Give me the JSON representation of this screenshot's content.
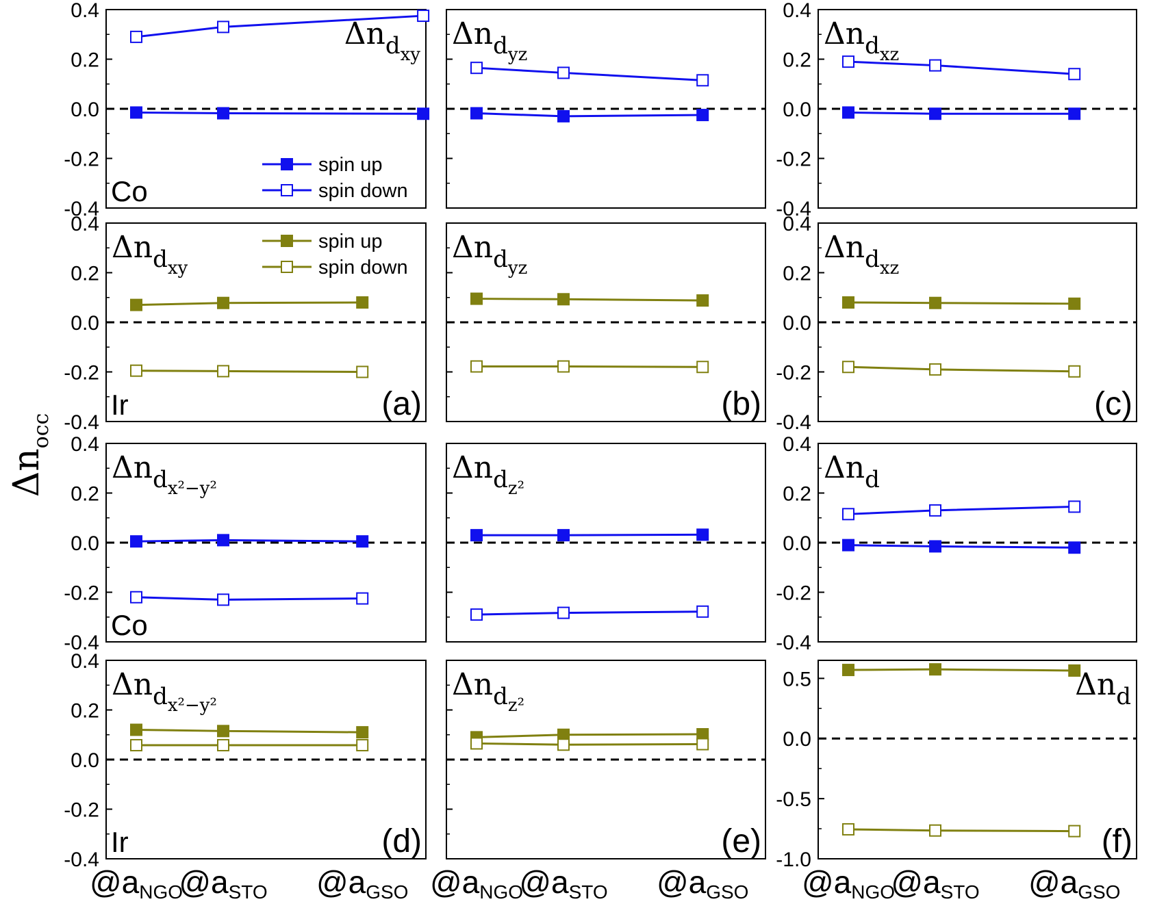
{
  "figure": {
    "ylabel_main": "Δn",
    "ylabel_sub": "occ",
    "x_categories": [
      {
        "at": "@a",
        "sub": "NGO"
      },
      {
        "at": "@a",
        "sub": "STO"
      },
      {
        "at": "@a",
        "sub": "GSO"
      }
    ],
    "colors": {
      "co": "#1010ee",
      "ir": "#808010",
      "zero_line": "#000000"
    },
    "legend": {
      "up": "spin up",
      "down": "spin down"
    }
  },
  "chart_data": [
    {
      "id": "co-dxy",
      "type": "line",
      "element": "Co",
      "panel_letter": "",
      "orbital_main": "Δn",
      "orbital_sub": "d",
      "orbital_subsub": "xy",
      "label_pos": "top-right",
      "x": [
        0,
        1,
        3.3
      ],
      "ylim": [
        -0.4,
        0.4
      ],
      "yticks": [
        "0.4",
        "0.2",
        "0.0",
        "-0.2",
        "-0.4"
      ],
      "series": [
        {
          "name": "spin up",
          "color": "#1010ee",
          "filled": true,
          "values": [
            -0.015,
            -0.018,
            -0.02
          ]
        },
        {
          "name": "spin down",
          "color": "#1010ee",
          "filled": false,
          "values": [
            0.29,
            0.33,
            0.375
          ]
        }
      ],
      "legend": true
    },
    {
      "id": "co-dyz",
      "type": "line",
      "element": "",
      "panel_letter": "",
      "orbital_main": "Δn",
      "orbital_sub": "d",
      "orbital_subsub": "yz",
      "label_pos": "top-left",
      "x": [
        0,
        1,
        2.6
      ],
      "ylim": [
        -0.4,
        0.4
      ],
      "yticks": [],
      "series": [
        {
          "name": "spin up",
          "color": "#1010ee",
          "filled": true,
          "values": [
            -0.018,
            -0.03,
            -0.025
          ]
        },
        {
          "name": "spin down",
          "color": "#1010ee",
          "filled": false,
          "values": [
            0.165,
            0.145,
            0.115
          ]
        }
      ]
    },
    {
      "id": "co-dxz",
      "type": "line",
      "element": "",
      "panel_letter": "",
      "orbital_main": "Δn",
      "orbital_sub": "d",
      "orbital_subsub": "xz",
      "label_pos": "top-left",
      "x": [
        0,
        1,
        2.6
      ],
      "ylim": [
        -0.4,
        0.4
      ],
      "yticks": [
        "0.4",
        "0.2",
        "0.0",
        "-0.2",
        "-0.4"
      ],
      "series": [
        {
          "name": "spin up",
          "color": "#1010ee",
          "filled": true,
          "values": [
            -0.015,
            -0.02,
            -0.02
          ]
        },
        {
          "name": "spin down",
          "color": "#1010ee",
          "filled": false,
          "values": [
            0.19,
            0.175,
            0.14
          ]
        }
      ]
    },
    {
      "id": "ir-dxy",
      "type": "line",
      "element": "Ir",
      "panel_letter": "(a)",
      "orbital_main": "Δn",
      "orbital_sub": "d",
      "orbital_subsub": "xy",
      "label_pos": "top-left",
      "x": [
        0,
        1,
        2.6
      ],
      "ylim": [
        -0.4,
        0.4
      ],
      "yticks": [
        "0.4",
        "0.2",
        "0.0",
        "-0.2",
        "-0.4"
      ],
      "series": [
        {
          "name": "spin up",
          "color": "#808010",
          "filled": true,
          "values": [
            0.07,
            0.078,
            0.08
          ]
        },
        {
          "name": "spin down",
          "color": "#808010",
          "filled": false,
          "values": [
            -0.195,
            -0.197,
            -0.2
          ]
        }
      ],
      "legend": true
    },
    {
      "id": "ir-dyz",
      "type": "line",
      "element": "",
      "panel_letter": "(b)",
      "orbital_main": "Δn",
      "orbital_sub": "d",
      "orbital_subsub": "yz",
      "label_pos": "top-left",
      "x": [
        0,
        1,
        2.6
      ],
      "ylim": [
        -0.4,
        0.4
      ],
      "yticks": [],
      "series": [
        {
          "name": "spin up",
          "color": "#808010",
          "filled": true,
          "values": [
            0.095,
            0.093,
            0.088
          ]
        },
        {
          "name": "spin down",
          "color": "#808010",
          "filled": false,
          "values": [
            -0.178,
            -0.178,
            -0.18
          ]
        }
      ]
    },
    {
      "id": "ir-dxz",
      "type": "line",
      "element": "",
      "panel_letter": "(c)",
      "orbital_main": "Δn",
      "orbital_sub": "d",
      "orbital_subsub": "xz",
      "label_pos": "top-left",
      "x": [
        0,
        1,
        2.6
      ],
      "ylim": [
        -0.4,
        0.4
      ],
      "yticks": [
        "0.4",
        "0.2",
        "0.0",
        "-0.2",
        "-0.4"
      ],
      "series": [
        {
          "name": "spin up",
          "color": "#808010",
          "filled": true,
          "values": [
            0.08,
            0.078,
            0.075
          ]
        },
        {
          "name": "spin down",
          "color": "#808010",
          "filled": false,
          "values": [
            -0.18,
            -0.19,
            -0.198
          ]
        }
      ]
    },
    {
      "id": "co-dx2y2",
      "type": "line",
      "element": "Co",
      "panel_letter": "",
      "orbital_main": "Δn",
      "orbital_sub": "d",
      "orbital_subsub": "x²−y²",
      "label_pos": "top-left",
      "x": [
        0,
        1,
        2.6
      ],
      "ylim": [
        -0.4,
        0.4
      ],
      "yticks": [
        "0.4",
        "0.2",
        "0.0",
        "-0.2",
        "-0.4"
      ],
      "series": [
        {
          "name": "spin up",
          "color": "#1010ee",
          "filled": true,
          "values": [
            0.005,
            0.01,
            0.005
          ]
        },
        {
          "name": "spin down",
          "color": "#1010ee",
          "filled": false,
          "values": [
            -0.22,
            -0.23,
            -0.225
          ]
        }
      ]
    },
    {
      "id": "co-dz2",
      "type": "line",
      "element": "",
      "panel_letter": "",
      "orbital_main": "Δn",
      "orbital_sub": "d",
      "orbital_subsub": "z²",
      "label_pos": "top-left",
      "x": [
        0,
        1,
        2.6
      ],
      "ylim": [
        -0.4,
        0.4
      ],
      "yticks": [],
      "series": [
        {
          "name": "spin up",
          "color": "#1010ee",
          "filled": true,
          "values": [
            0.03,
            0.03,
            0.032
          ]
        },
        {
          "name": "spin down",
          "color": "#1010ee",
          "filled": false,
          "values": [
            -0.29,
            -0.283,
            -0.278
          ]
        }
      ]
    },
    {
      "id": "co-d",
      "type": "line",
      "element": "",
      "panel_letter": "",
      "orbital_main": "Δn",
      "orbital_sub": "d",
      "orbital_subsub": "",
      "label_pos": "top-left",
      "x": [
        0,
        1,
        2.6
      ],
      "ylim": [
        -0.4,
        0.4
      ],
      "yticks": [
        "0.4",
        "0.2",
        "0.0",
        "-0.2",
        "-0.4"
      ],
      "series": [
        {
          "name": "spin up",
          "color": "#1010ee",
          "filled": true,
          "values": [
            -0.01,
            -0.015,
            -0.02
          ]
        },
        {
          "name": "spin down",
          "color": "#1010ee",
          "filled": false,
          "values": [
            0.115,
            0.13,
            0.145
          ]
        }
      ]
    },
    {
      "id": "ir-dx2y2",
      "type": "line",
      "element": "Ir",
      "panel_letter": "(d)",
      "orbital_main": "Δn",
      "orbital_sub": "d",
      "orbital_subsub": "x²−y²",
      "label_pos": "top-left",
      "x": [
        0,
        1,
        2.6
      ],
      "ylim": [
        -0.4,
        0.4
      ],
      "yticks": [
        "0.4",
        "0.2",
        "0.0",
        "-0.2",
        "-0.4"
      ],
      "series": [
        {
          "name": "spin up",
          "color": "#808010",
          "filled": true,
          "values": [
            0.12,
            0.115,
            0.11
          ]
        },
        {
          "name": "spin down",
          "color": "#808010",
          "filled": false,
          "values": [
            0.058,
            0.058,
            0.058
          ]
        }
      ]
    },
    {
      "id": "ir-dz2",
      "type": "line",
      "element": "",
      "panel_letter": "(e)",
      "orbital_main": "Δn",
      "orbital_sub": "d",
      "orbital_subsub": "z²",
      "label_pos": "top-left",
      "x": [
        0,
        1,
        2.6
      ],
      "ylim": [
        -0.4,
        0.4
      ],
      "yticks": [],
      "series": [
        {
          "name": "spin up",
          "color": "#808010",
          "filled": true,
          "values": [
            0.09,
            0.1,
            0.102
          ]
        },
        {
          "name": "spin down",
          "color": "#808010",
          "filled": false,
          "values": [
            0.065,
            0.06,
            0.062
          ]
        }
      ]
    },
    {
      "id": "ir-d",
      "type": "line",
      "element": "",
      "panel_letter": "(f)",
      "orbital_main": "Δn",
      "orbital_sub": "d",
      "orbital_subsub": "",
      "label_pos": "top-right",
      "x": [
        0,
        1,
        2.6
      ],
      "ylim": [
        -1.0,
        0.65
      ],
      "yticks": [
        "0.5",
        "0.0",
        "-0.5",
        "-1.0"
      ],
      "ytick_values": [
        0.5,
        0.0,
        -0.5,
        -1.0
      ],
      "series": [
        {
          "name": "spin up",
          "color": "#808010",
          "filled": true,
          "values": [
            0.57,
            0.575,
            0.565
          ]
        },
        {
          "name": "spin down",
          "color": "#808010",
          "filled": false,
          "values": [
            -0.755,
            -0.765,
            -0.77
          ]
        }
      ]
    }
  ]
}
